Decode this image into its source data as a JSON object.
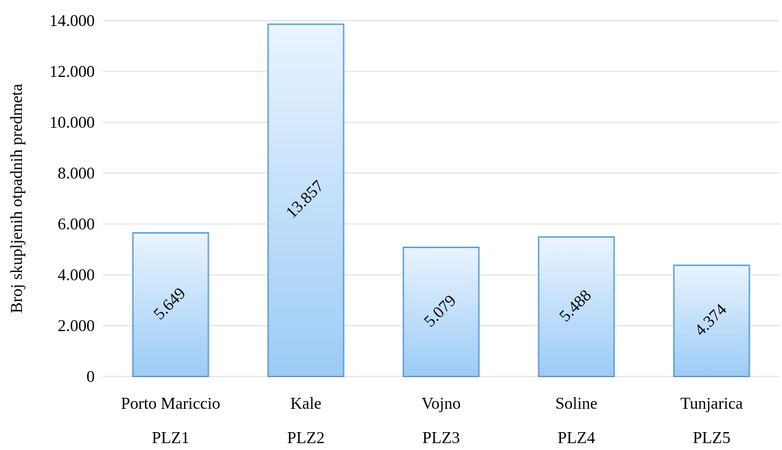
{
  "chart_data": {
    "type": "bar",
    "categories": [
      "Porto Mariccio",
      "Kale",
      "Vojno",
      "Soline",
      "Tunjarica"
    ],
    "subcategories": [
      "PLZ1",
      "PLZ2",
      "PLZ3",
      "PLZ4",
      "PLZ5"
    ],
    "values": [
      5649,
      13857,
      5079,
      5488,
      4374
    ],
    "data_labels": [
      "5.649",
      "13.857",
      "5.079",
      "5.488",
      "4.374"
    ],
    "ylabel": "Broj skupljenih otpadnih predmeta",
    "ylim": [
      0,
      14000
    ],
    "yticks": [
      0,
      2000,
      4000,
      6000,
      8000,
      10000,
      12000,
      14000
    ],
    "ytick_labels": [
      "0",
      "2.000",
      "4.000",
      "6.000",
      "8.000",
      "10.000",
      "12.000",
      "14.000"
    ],
    "grid": true,
    "colors": {
      "bar_top": "#eaf4ff",
      "bar_bottom": "#9ccbf6",
      "bar_stroke": "#5b9bd5",
      "grid": "#d9d9d9"
    }
  }
}
